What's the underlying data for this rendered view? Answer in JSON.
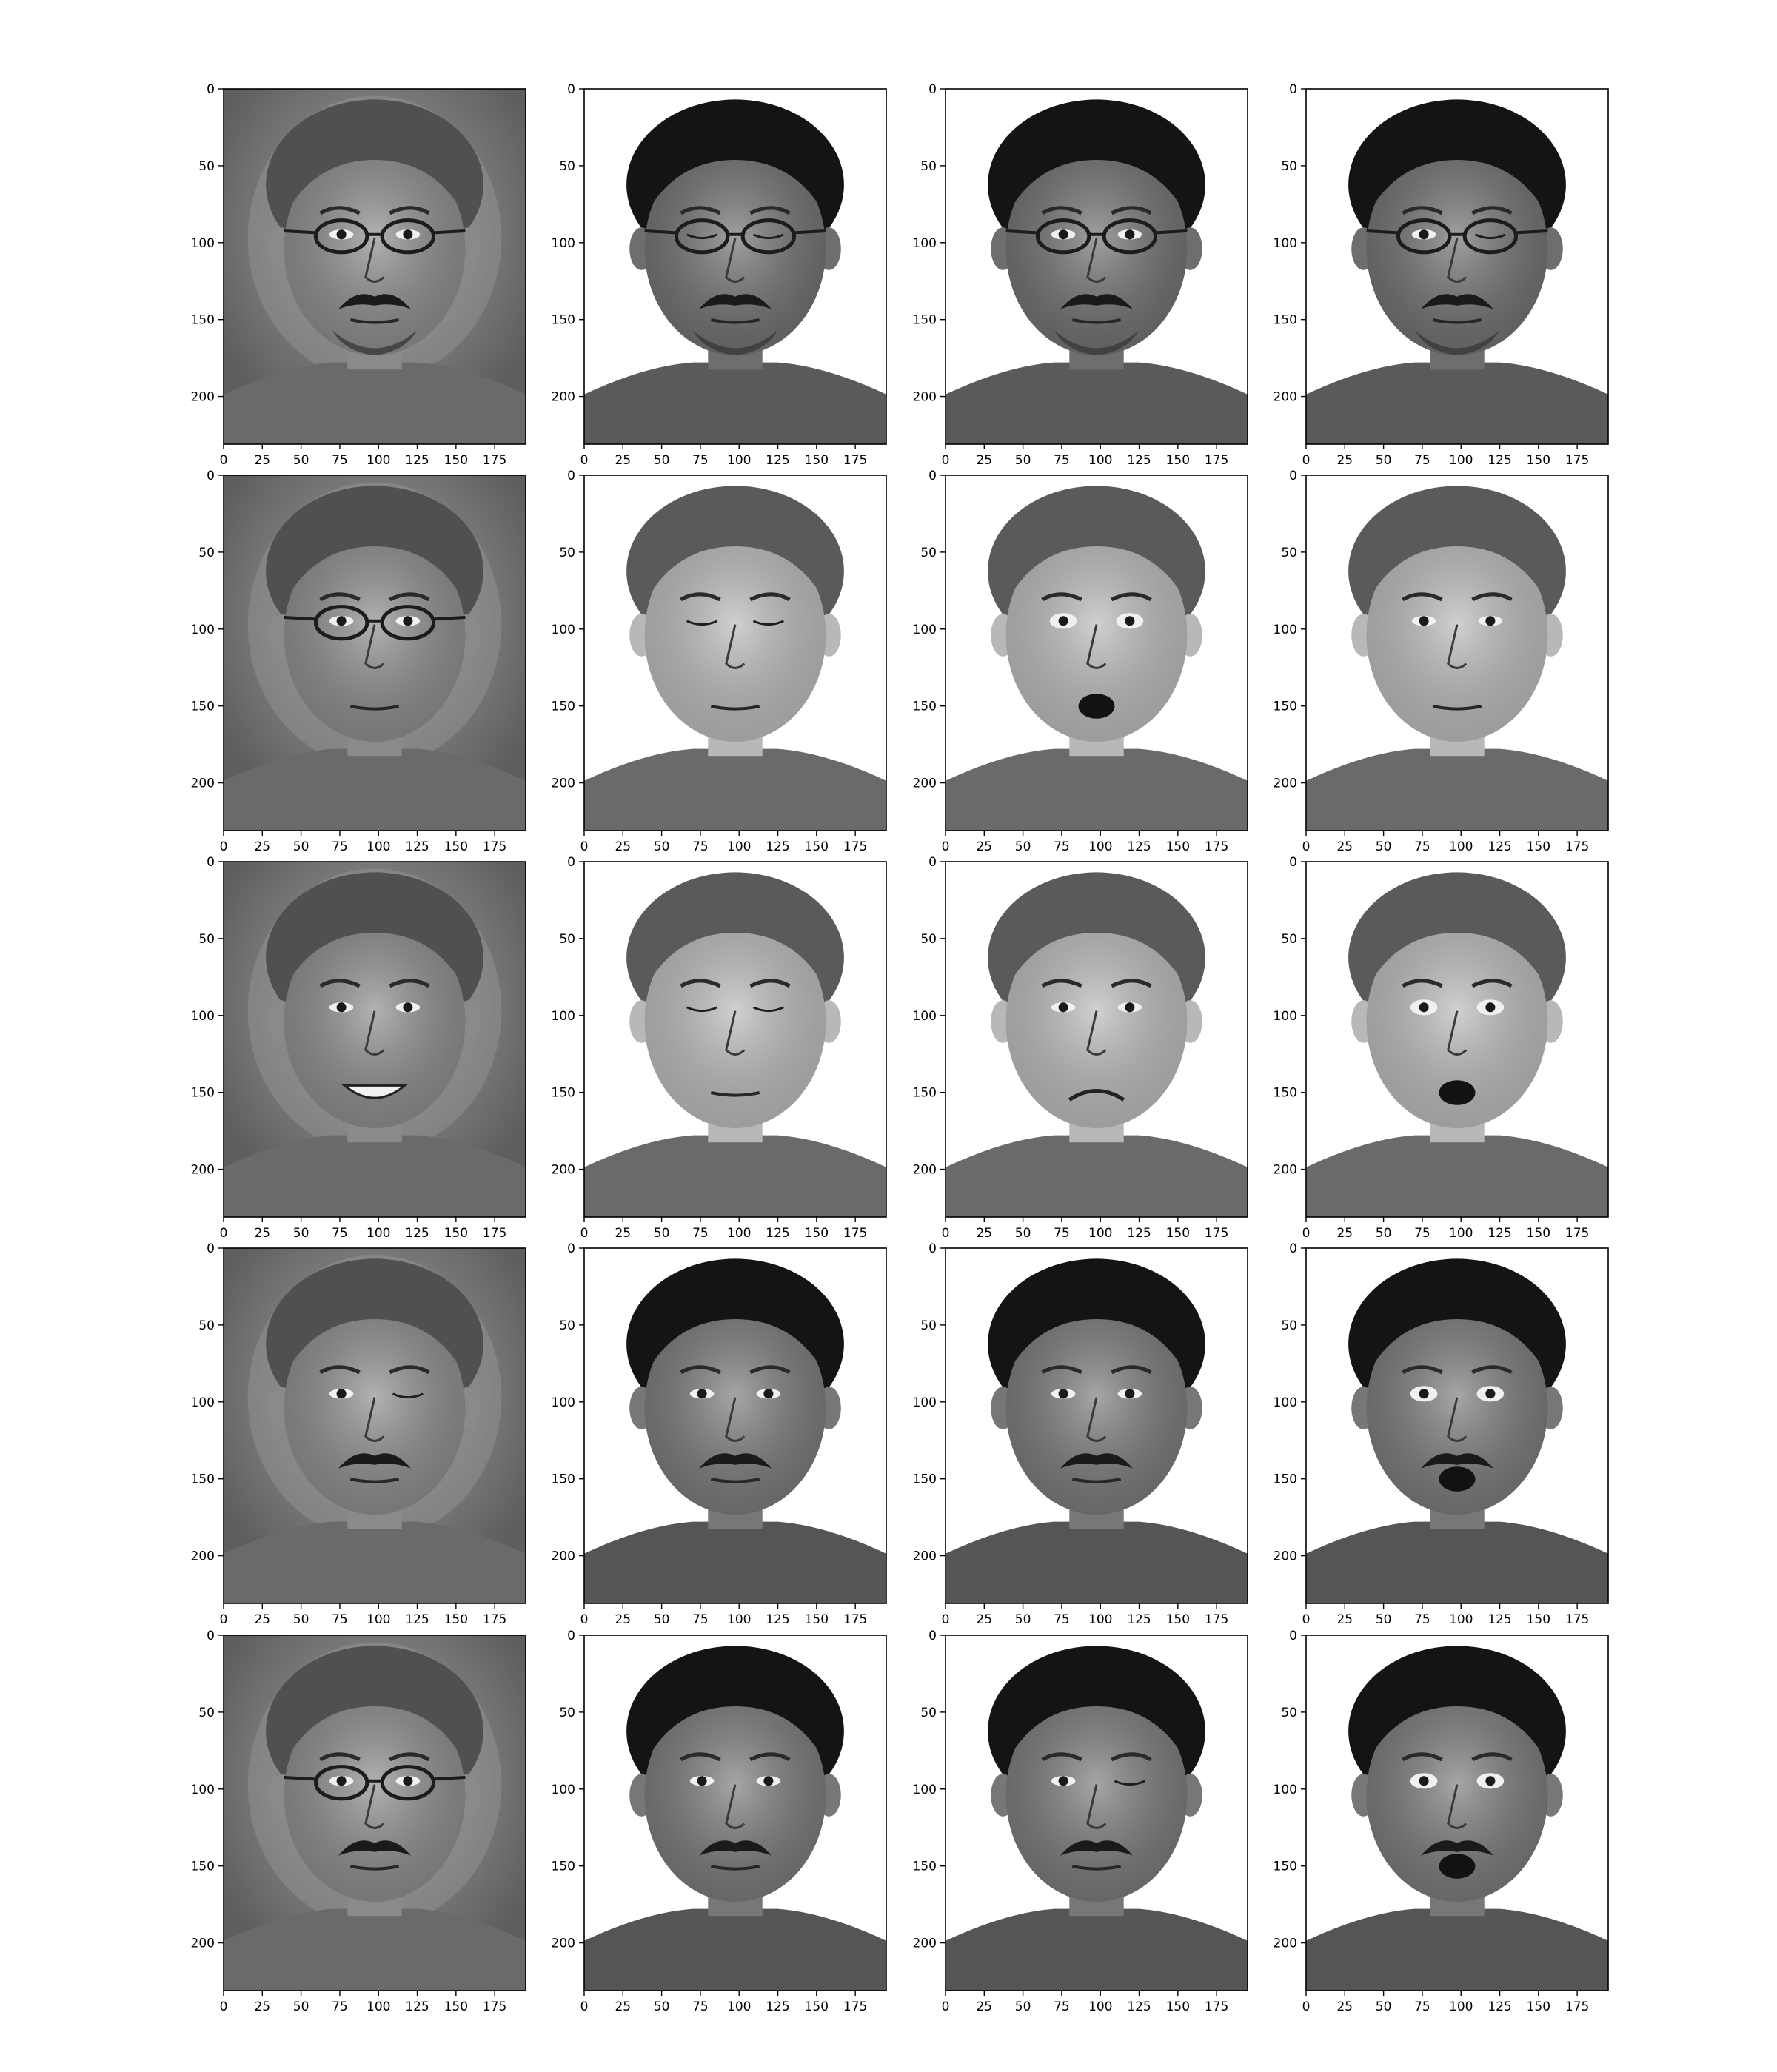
{
  "figure": {
    "description_free": true,
    "layout": "5x4 grid of grayscale face image panels"
  },
  "chart_data": {
    "type": "image-grid",
    "rows": 5,
    "cols": 4,
    "xlim": [
      0,
      195
    ],
    "ylim": [
      231,
      0
    ],
    "x_ticks": [
      0,
      25,
      50,
      75,
      100,
      125,
      150,
      175
    ],
    "y_ticks": [
      0,
      50,
      100,
      150,
      200
    ],
    "panels": [
      {
        "row": 0,
        "col": 0,
        "subject": "A",
        "style": "reconstructed",
        "glasses": true,
        "expression": "neutral"
      },
      {
        "row": 0,
        "col": 1,
        "subject": "A",
        "style": "original",
        "glasses": true,
        "expression": "eyes-closed"
      },
      {
        "row": 0,
        "col": 2,
        "subject": "A",
        "style": "original",
        "glasses": true,
        "expression": "neutral"
      },
      {
        "row": 0,
        "col": 3,
        "subject": "A",
        "style": "original",
        "glasses": true,
        "expression": "wink"
      },
      {
        "row": 1,
        "col": 0,
        "subject": "B",
        "style": "reconstructed",
        "glasses": true,
        "expression": "neutral"
      },
      {
        "row": 1,
        "col": 1,
        "subject": "B",
        "style": "original",
        "glasses": false,
        "expression": "eyes-closed"
      },
      {
        "row": 1,
        "col": 2,
        "subject": "B",
        "style": "original",
        "glasses": false,
        "expression": "surprised"
      },
      {
        "row": 1,
        "col": 3,
        "subject": "B",
        "style": "original",
        "glasses": false,
        "expression": "neutral"
      },
      {
        "row": 2,
        "col": 0,
        "subject": "B",
        "style": "reconstructed",
        "glasses": false,
        "expression": "happy"
      },
      {
        "row": 2,
        "col": 1,
        "subject": "B",
        "style": "original",
        "glasses": false,
        "expression": "eyes-closed"
      },
      {
        "row": 2,
        "col": 2,
        "subject": "B",
        "style": "original",
        "glasses": false,
        "expression": "sad"
      },
      {
        "row": 2,
        "col": 3,
        "subject": "B",
        "style": "original",
        "glasses": false,
        "expression": "surprised"
      },
      {
        "row": 3,
        "col": 0,
        "subject": "C",
        "style": "reconstructed",
        "glasses": false,
        "expression": "wink"
      },
      {
        "row": 3,
        "col": 1,
        "subject": "C",
        "style": "original",
        "glasses": false,
        "expression": "neutral"
      },
      {
        "row": 3,
        "col": 2,
        "subject": "C",
        "style": "original",
        "glasses": false,
        "expression": "neutral"
      },
      {
        "row": 3,
        "col": 3,
        "subject": "C",
        "style": "original",
        "glasses": false,
        "expression": "surprised"
      },
      {
        "row": 4,
        "col": 0,
        "subject": "C",
        "style": "reconstructed",
        "glasses": true,
        "expression": "neutral"
      },
      {
        "row": 4,
        "col": 1,
        "subject": "C",
        "style": "original",
        "glasses": false,
        "expression": "neutral"
      },
      {
        "row": 4,
        "col": 2,
        "subject": "C",
        "style": "original",
        "glasses": false,
        "expression": "wink"
      },
      {
        "row": 4,
        "col": 3,
        "subject": "C",
        "style": "original",
        "glasses": false,
        "expression": "surprised"
      }
    ],
    "subjects": {
      "A": {
        "hair": "#141414",
        "skin": "#6e6e6e",
        "shirt": "#5a5a5a",
        "beard": true,
        "moustache": true
      },
      "B": {
        "hair": "#5a5a5a",
        "skin": "#b8b8b8",
        "shirt": "#6a6a6a",
        "beard": false,
        "moustache": false
      },
      "C": {
        "hair": "#141414",
        "skin": "#777777",
        "shirt": "#555555",
        "beard": false,
        "moustache": true
      }
    },
    "colors": {
      "reconstructed_bg": "#6f6f6f",
      "original_bg": "#ffffff",
      "axis": "#000000"
    },
    "grid": false
  }
}
